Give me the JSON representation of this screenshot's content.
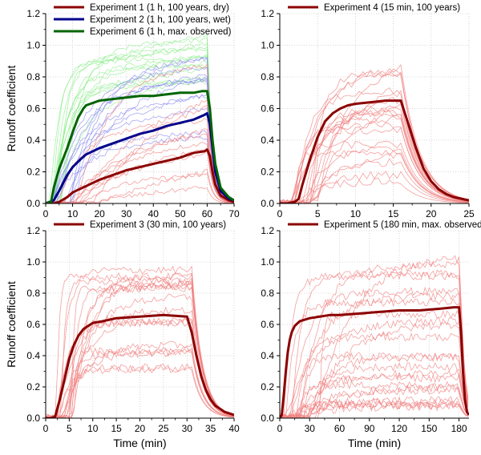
{
  "figure": {
    "ylabel": "Runoff coefficient",
    "xlabel": "Time (min)"
  },
  "chart_data": [
    {
      "type": "line",
      "id": "p1",
      "title": "",
      "xlabel": "",
      "ylabel": "Runoff coefficient",
      "xlim": [
        0,
        70
      ],
      "ylim": [
        0,
        1.2
      ],
      "xticks": [
        0,
        10,
        20,
        30,
        40,
        50,
        60,
        70
      ],
      "yticks": [
        0,
        0.2,
        0.4,
        0.6,
        0.8,
        1.0,
        1.2
      ],
      "grid": true,
      "legend": [
        "Experiment 1 (1 h, 100 years, dry)",
        "Experiment 2 (1 h, 100 years, wet)",
        "Experiment 6 (1 h, max. observed)"
      ],
      "series": [
        {
          "name": "Experiment 1 (1 h, 100 years, dry)",
          "color": "#8b0000",
          "x": [
            0,
            3,
            5,
            8,
            10,
            15,
            20,
            25,
            30,
            35,
            40,
            45,
            50,
            55,
            59,
            60,
            61,
            62,
            63,
            65,
            68,
            70
          ],
          "y": [
            0,
            0,
            0.01,
            0.04,
            0.07,
            0.11,
            0.15,
            0.18,
            0.21,
            0.23,
            0.25,
            0.27,
            0.29,
            0.32,
            0.33,
            0.34,
            0.3,
            0.2,
            0.12,
            0.05,
            0.02,
            0.01
          ]
        },
        {
          "name": "Experiment 2 (1 h, 100 years, wet)",
          "color": "#00008b",
          "x": [
            0,
            3,
            5,
            8,
            10,
            13,
            15,
            20,
            25,
            30,
            35,
            40,
            45,
            50,
            55,
            59,
            60,
            61,
            62,
            63,
            65,
            68,
            70
          ],
          "y": [
            0,
            0.02,
            0.08,
            0.18,
            0.23,
            0.28,
            0.31,
            0.35,
            0.38,
            0.41,
            0.44,
            0.46,
            0.49,
            0.51,
            0.53,
            0.56,
            0.57,
            0.5,
            0.35,
            0.2,
            0.08,
            0.03,
            0.02
          ]
        },
        {
          "name": "Experiment 6 (1 h, max. observed)",
          "color": "#006400",
          "x": [
            0,
            2,
            3,
            5,
            8,
            10,
            12,
            14,
            15,
            20,
            25,
            30,
            35,
            40,
            45,
            50,
            55,
            58,
            60,
            61,
            62,
            63,
            65,
            68,
            70
          ],
          "y": [
            0,
            0.01,
            0.1,
            0.22,
            0.35,
            0.45,
            0.54,
            0.6,
            0.62,
            0.65,
            0.66,
            0.67,
            0.68,
            0.68,
            0.69,
            0.7,
            0.7,
            0.71,
            0.71,
            0.6,
            0.4,
            0.25,
            0.1,
            0.04,
            0.02
          ]
        }
      ]
    },
    {
      "type": "line",
      "id": "p4",
      "title": "",
      "xlabel": "",
      "ylabel": "",
      "xlim": [
        0,
        25
      ],
      "ylim": [
        0,
        1.2
      ],
      "xticks": [
        0,
        5,
        10,
        15,
        20,
        25
      ],
      "yticks": [
        0,
        0.2,
        0.4,
        0.6,
        0.8,
        1.0,
        1.2
      ],
      "grid": true,
      "legend": [
        "Experiment 4 (15 min, 100 years)"
      ],
      "series": [
        {
          "name": "Experiment 4 (15 min, 100 years)",
          "color": "#8b0000",
          "x": [
            0,
            1,
            2,
            2.5,
            3,
            4,
            5,
            6,
            7,
            8,
            9,
            10,
            12,
            14,
            16,
            17,
            18,
            19,
            20,
            21,
            22,
            23,
            24,
            25
          ],
          "y": [
            0,
            0,
            0.01,
            0.03,
            0.12,
            0.28,
            0.42,
            0.52,
            0.57,
            0.6,
            0.62,
            0.63,
            0.64,
            0.65,
            0.65,
            0.5,
            0.35,
            0.22,
            0.14,
            0.09,
            0.06,
            0.04,
            0.03,
            0.02
          ]
        }
      ]
    },
    {
      "type": "line",
      "id": "p3",
      "title": "",
      "xlabel": "Time (min)",
      "ylabel": "Runoff coefficient",
      "xlim": [
        0,
        40
      ],
      "ylim": [
        0,
        1.2
      ],
      "xticks": [
        0,
        5,
        10,
        15,
        20,
        25,
        30,
        35,
        40
      ],
      "yticks": [
        0,
        0.2,
        0.4,
        0.6,
        0.8,
        1.0,
        1.2
      ],
      "grid": true,
      "legend": [
        "Experiment 3 (30 min, 100 years)"
      ],
      "series": [
        {
          "name": "Experiment 3 (30 min, 100 years)",
          "color": "#8b0000",
          "x": [
            0,
            1,
            2,
            3,
            4,
            5,
            6,
            7,
            8,
            9,
            10,
            12,
            15,
            20,
            25,
            30,
            31,
            32,
            33,
            34,
            35,
            36,
            37,
            38,
            39,
            40
          ],
          "y": [
            0,
            0,
            0.01,
            0.12,
            0.25,
            0.38,
            0.47,
            0.53,
            0.57,
            0.59,
            0.61,
            0.62,
            0.64,
            0.65,
            0.66,
            0.65,
            0.55,
            0.4,
            0.27,
            0.18,
            0.12,
            0.08,
            0.06,
            0.04,
            0.03,
            0.02
          ]
        }
      ]
    },
    {
      "type": "line",
      "id": "p5",
      "title": "",
      "xlabel": "Time (min)",
      "ylabel": "",
      "xlim": [
        0,
        190
      ],
      "ylim": [
        0,
        1.2
      ],
      "xticks": [
        0,
        30,
        60,
        90,
        120,
        150,
        180
      ],
      "yticks": [
        0,
        0.2,
        0.4,
        0.6,
        0.8,
        1.0,
        1.2
      ],
      "grid": true,
      "legend": [
        "Experiment 5 (180 min, max. observed)"
      ],
      "series": [
        {
          "name": "Experiment 5 (180 min, max. observed)",
          "color": "#8b0000",
          "x": [
            0,
            2,
            4,
            6,
            8,
            10,
            12,
            15,
            20,
            25,
            30,
            40,
            50,
            60,
            80,
            100,
            120,
            140,
            160,
            175,
            180,
            182,
            184,
            186,
            188,
            190
          ],
          "y": [
            0,
            0.02,
            0.15,
            0.3,
            0.42,
            0.5,
            0.55,
            0.59,
            0.62,
            0.63,
            0.64,
            0.65,
            0.66,
            0.66,
            0.67,
            0.68,
            0.69,
            0.69,
            0.7,
            0.71,
            0.71,
            0.55,
            0.3,
            0.12,
            0.04,
            0.02
          ]
        }
      ]
    }
  ]
}
